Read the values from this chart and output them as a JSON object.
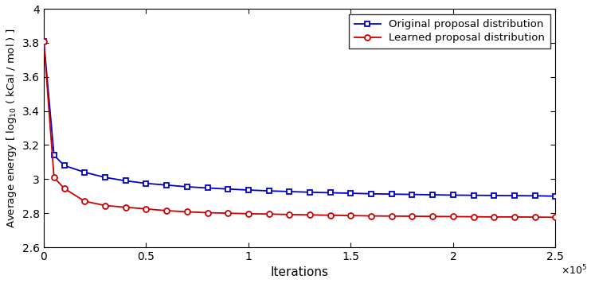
{
  "title": "",
  "xlabel": "Iterations",
  "ylabel": "Average energy [ log$_{10}$ ( kCal / mol ) ]",
  "xlim": [
    0,
    250000
  ],
  "ylim": [
    2.6,
    4.0
  ],
  "xticks": [
    0,
    50000,
    100000,
    150000,
    200000,
    250000
  ],
  "xtick_labels": [
    "0",
    "0.5",
    "1",
    "1.5",
    "2",
    "2.5"
  ],
  "yticks": [
    2.6,
    2.8,
    3.0,
    3.2,
    3.4,
    3.6,
    3.8,
    4.0
  ],
  "ytick_labels": [
    "2.6",
    "2.8",
    "3",
    "3.2",
    "3.4",
    "3.6",
    "3.8",
    "4"
  ],
  "blue_color": "#0000CC",
  "red_color": "#CC0000",
  "legend_blue": "Original proposal distribution",
  "legend_red": "Learned proposal distribution",
  "blue_x": [
    0,
    5000,
    10000,
    20000,
    30000,
    40000,
    50000,
    60000,
    70000,
    80000,
    90000,
    100000,
    110000,
    120000,
    130000,
    140000,
    150000,
    160000,
    170000,
    180000,
    190000,
    200000,
    210000,
    220000,
    230000,
    240000,
    250000
  ],
  "blue_y": [
    3.81,
    3.14,
    3.08,
    3.04,
    3.01,
    2.99,
    2.975,
    2.965,
    2.955,
    2.948,
    2.942,
    2.936,
    2.931,
    2.927,
    2.923,
    2.92,
    2.917,
    2.914,
    2.912,
    2.91,
    2.908,
    2.906,
    2.905,
    2.904,
    2.903,
    2.902,
    2.9
  ],
  "red_x": [
    0,
    5000,
    10000,
    20000,
    30000,
    40000,
    50000,
    60000,
    70000,
    80000,
    90000,
    100000,
    110000,
    120000,
    130000,
    140000,
    150000,
    160000,
    170000,
    180000,
    190000,
    200000,
    210000,
    220000,
    230000,
    240000,
    250000
  ],
  "red_y": [
    3.81,
    3.01,
    2.945,
    2.87,
    2.845,
    2.835,
    2.825,
    2.815,
    2.808,
    2.803,
    2.8,
    2.797,
    2.795,
    2.792,
    2.79,
    2.788,
    2.786,
    2.784,
    2.783,
    2.782,
    2.781,
    2.78,
    2.779,
    2.778,
    2.778,
    2.777,
    2.776
  ]
}
